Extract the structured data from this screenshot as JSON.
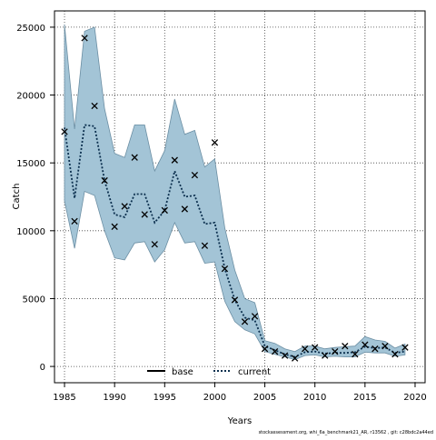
{
  "chart_data": {
    "type": "line",
    "xlabel": "Years",
    "ylabel": "Catch",
    "xlim": [
      1984,
      2021
    ],
    "ylim": [
      -1200,
      26200
    ],
    "xticks": [
      1985,
      1990,
      1995,
      2000,
      2005,
      2010,
      2015,
      2020
    ],
    "yticks": [
      0,
      5000,
      10000,
      15000,
      20000,
      25000
    ],
    "grid": true,
    "legend_placement": "bottom-center",
    "legend": [
      {
        "name": "base",
        "style": "solid",
        "color": "#000000"
      },
      {
        "name": "current",
        "style": "dotted",
        "color": "#0b2f4e"
      }
    ],
    "colors": {
      "band_fill": "#a3c4d6",
      "band_edge": "#6b8ea3",
      "current_line": "#0b2f4e"
    },
    "years": [
      1985,
      1986,
      1987,
      1988,
      1989,
      1990,
      1991,
      1992,
      1993,
      1994,
      1995,
      1996,
      1997,
      1998,
      1999,
      2000,
      2001,
      2002,
      2003,
      2004,
      2005,
      2006,
      2007,
      2008,
      2009,
      2010,
      2011,
      2012,
      2013,
      2014,
      2015,
      2016,
      2017,
      2018,
      2019
    ],
    "current": [
      17600,
      12400,
      17800,
      17700,
      13700,
      11200,
      11000,
      12700,
      12700,
      10600,
      11500,
      14400,
      12500,
      12600,
      10500,
      10600,
      7200,
      4900,
      3600,
      3400,
      1500,
      1200,
      900,
      700,
      1050,
      1100,
      950,
      1000,
      1000,
      1050,
      1450,
      1350,
      1400,
      1000,
      1100
    ],
    "band_upper": [
      25200,
      17500,
      24700,
      25000,
      19000,
      15700,
      15400,
      17800,
      17800,
      14400,
      15900,
      19700,
      17100,
      17400,
      14700,
      15300,
      10200,
      7100,
      5000,
      4700,
      1900,
      1700,
      1300,
      1100,
      1500,
      1500,
      1300,
      1400,
      1450,
      1500,
      2200,
      1950,
      1850,
      1350,
      1650
    ],
    "band_lower": [
      12200,
      8700,
      12900,
      12600,
      10000,
      8000,
      7850,
      9100,
      9200,
      7700,
      8600,
      10600,
      9100,
      9200,
      7600,
      7700,
      4800,
      3300,
      2700,
      2400,
      1100,
      900,
      700,
      500,
      800,
      850,
      700,
      750,
      700,
      700,
      1050,
      1000,
      1000,
      750,
      850
    ],
    "observed": [
      17300,
      10700,
      24200,
      19200,
      13700,
      10300,
      11800,
      15400,
      11200,
      9000,
      11500,
      15200,
      11600,
      14100,
      8900,
      16500,
      7200,
      4900,
      3300,
      3700,
      1300,
      1100,
      800,
      600,
      1300,
      1400,
      800,
      1100,
      1500,
      900,
      1600,
      1300,
      1500,
      900,
      1400
    ]
  },
  "footer": {
    "credit": "stockassessment.org,  whi_6a_benchmark21_AR, r13562 , git: c28bdc2a44ed"
  }
}
